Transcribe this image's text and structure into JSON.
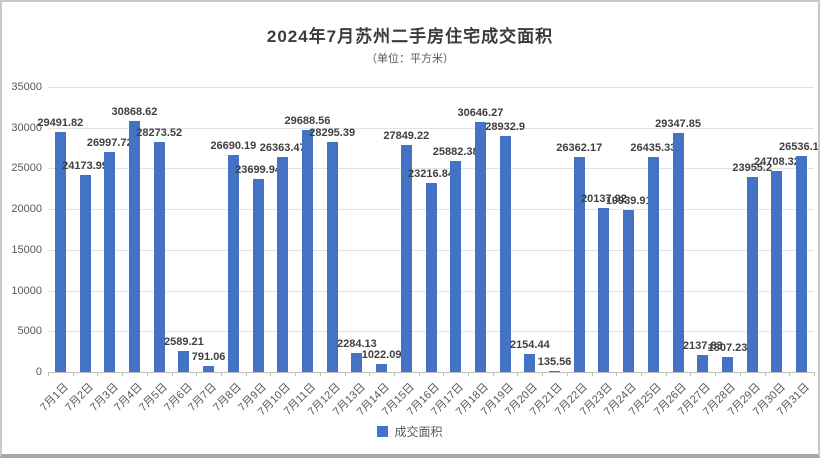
{
  "title": "2024年7月苏州二手房住宅成交面积",
  "subtitle": "（单位：平方米）",
  "legend": {
    "label": "成交面积",
    "color": "#4472c4"
  },
  "chart_data": {
    "type": "bar",
    "title": "2024年7月苏州二手房住宅成交面积",
    "subtitle": "（单位：平方米）",
    "categories": [
      "7月1日",
      "7月2日",
      "7月3日",
      "7月4日",
      "7月5日",
      "7月6日",
      "7月7日",
      "7月8日",
      "7月9日",
      "7月10日",
      "7月11日",
      "7月12日",
      "7月13日",
      "7月14日",
      "7月15日",
      "7月16日",
      "7月17日",
      "7月18日",
      "7月19日",
      "7月20日",
      "7月21日",
      "7月22日",
      "7月23日",
      "7月24日",
      "7月25日",
      "7月26日",
      "7月27日",
      "7月28日",
      "7月29日",
      "7月30日",
      "7月31日"
    ],
    "values": [
      29491.82,
      24173.99,
      26997.72,
      30868.62,
      28273.52,
      2589.21,
      791.06,
      26690.19,
      23699.94,
      26363.47,
      29688.56,
      28295.39,
      2284.13,
      1022.09,
      27849.22,
      23216.84,
      25882.38,
      30646.27,
      28932.9,
      2154.44,
      135.56,
      26362.17,
      20137.92,
      19939.91,
      26435.33,
      29347.85,
      2137.83,
      1807.23,
      23955.2,
      24708.32,
      26536.11
    ],
    "value_labels": [
      "29491.82",
      "24173.99",
      "26997.72",
      "30868.62",
      "28273.52",
      "2589.21",
      "791.06",
      "26690.19",
      "23699.94",
      "26363.47",
      "29688.56",
      "28295.39",
      "2284.13",
      "1022.09",
      "27849.22",
      "23216.84",
      "25882.38",
      "30646.27",
      "28932.9",
      "2154.44",
      "135.56",
      "26362.17",
      "20137.92",
      "19939.91",
      "26435.33",
      "29347.85",
      "2137.83",
      "1807.23",
      "23955.2",
      "24708.32",
      "26536.11"
    ],
    "series_name": "成交面积",
    "xlabel": "",
    "ylabel": "",
    "ylim": [
      0,
      35000
    ],
    "yticks": [
      "0",
      "5000",
      "10000",
      "15000",
      "20000",
      "25000",
      "30000",
      "35000"
    ],
    "grid": true,
    "legend_position": "bottom",
    "bar_color": "#4472c4"
  }
}
